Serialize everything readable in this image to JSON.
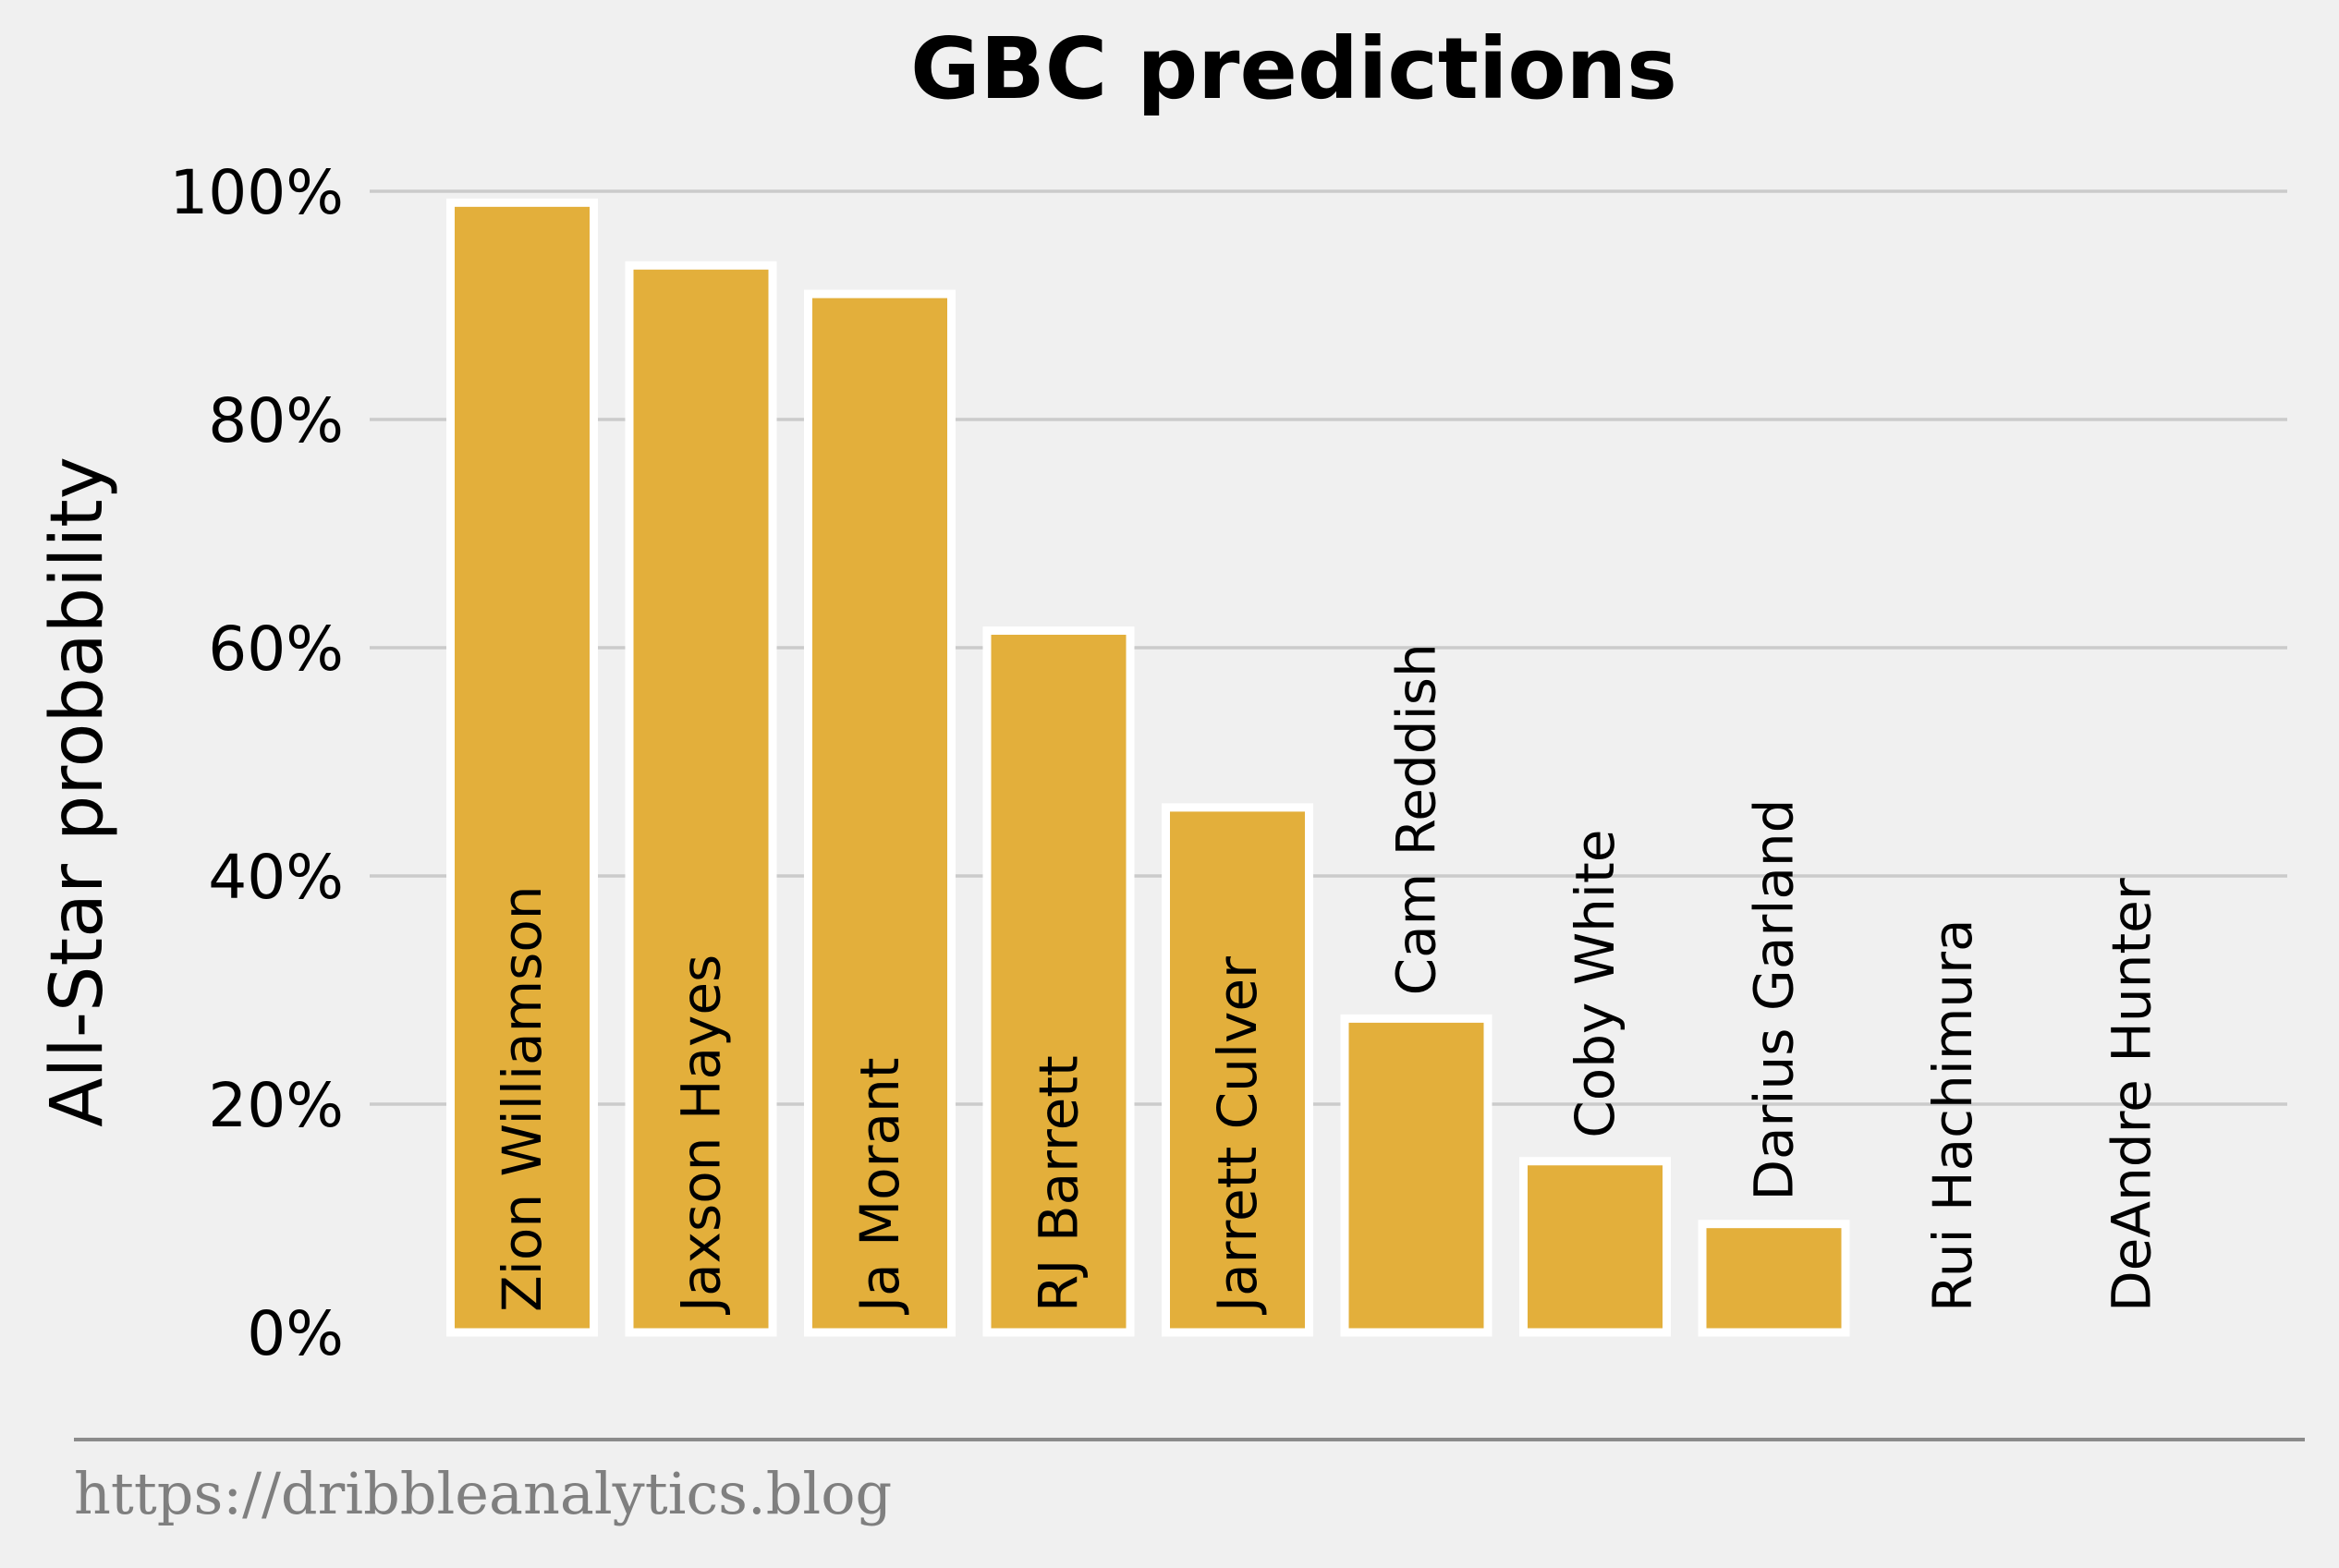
{
  "chart_data": {
    "type": "bar",
    "title": "GBC predictions",
    "xlabel": "",
    "ylabel": "All-Star probability",
    "ylim": [
      0,
      100
    ],
    "yticks": [
      "0%",
      "20%",
      "40%",
      "60%",
      "80%",
      "100%"
    ],
    "grid": true,
    "categories": [
      "Zion Williamson",
      "Jaxson Hayes",
      "Ja Morant",
      "RJ Barrett",
      "Jarrett Culver",
      "Cam Reddish",
      "Coby White",
      "Darius Garland",
      "Rui Hachimura",
      "DeAndre Hunter"
    ],
    "values": [
      99,
      93.5,
      91,
      61.5,
      46,
      27.5,
      15,
      9.5,
      0,
      0
    ],
    "bar_color": "#e3af3b",
    "bar_edge_color": "#ffffff"
  },
  "footer": {
    "source_text": "https://dribbleanalytics.blog"
  },
  "colors": {
    "background": "#f0f0f0",
    "grid": "#cbcbcb",
    "footer_rule": "#8b8b8b",
    "footer_text": "#7f7f7f"
  }
}
